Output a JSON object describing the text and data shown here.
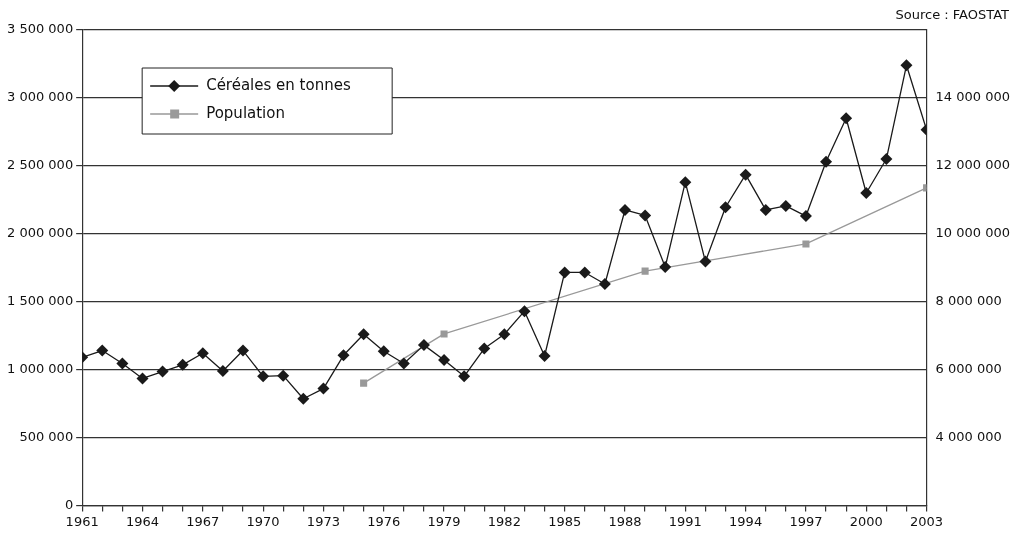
{
  "chart_data": {
    "type": "line",
    "annotations": [
      "Source : FAOSTAT"
    ],
    "xlim": [
      1961,
      2003
    ],
    "xticks": [
      1961,
      1964,
      1967,
      1970,
      1973,
      1976,
      1979,
      1982,
      1985,
      1988,
      1991,
      1994,
      1997,
      2000,
      2003
    ],
    "ylim": [
      0,
      3500000
    ],
    "yticks": [
      {
        "value": 0,
        "label": "0"
      },
      {
        "value": 500000,
        "label": "500 000"
      },
      {
        "value": 1000000,
        "label": "1 000 000"
      },
      {
        "value": 1500000,
        "label": "1 500 000"
      },
      {
        "value": 2000000,
        "label": "2 000 000"
      },
      {
        "value": 2500000,
        "label": "2 500 000"
      },
      {
        "value": 3000000,
        "label": "3 000 000"
      },
      {
        "value": 3500000,
        "label": "3 500 000"
      }
    ],
    "y2lim": [
      2000000,
      16000000
    ],
    "y2ticks": [
      {
        "value": 4000000,
        "label": "4 000 000"
      },
      {
        "value": 6000000,
        "label": "6 000 000"
      },
      {
        "value": 8000000,
        "label": "8 000 000"
      },
      {
        "value": 10000000,
        "label": "10 000 000"
      },
      {
        "value": 12000000,
        "label": "12 000 000"
      },
      {
        "value": 14000000,
        "label": "14 000 000"
      }
    ],
    "grid": "y",
    "legend": "top left",
    "line_style": "solid",
    "series": [
      {
        "name": "Céréales en tonnes",
        "color": "#1a1a1a",
        "marker": "diamond",
        "x": [
          1961,
          1962,
          1963,
          1964,
          1965,
          1966,
          1967,
          1968,
          1969,
          1970,
          1971,
          1972,
          1973,
          1974,
          1975,
          1976,
          1977,
          1978,
          1979,
          1980,
          1981,
          1982,
          1983,
          1984,
          1985,
          1986,
          1987,
          1988,
          1989,
          1990,
          1991,
          1992,
          1993,
          1994,
          1995,
          1996,
          1997,
          1998,
          1999,
          2000,
          2001,
          2002,
          2003
        ],
        "values": [
          1090000,
          1140000,
          1045000,
          935000,
          985000,
          1035000,
          1120000,
          990000,
          1140000,
          950000,
          955000,
          785000,
          860000,
          1105000,
          1260000,
          1135000,
          1045000,
          1180000,
          1070000,
          950000,
          1155000,
          1260000,
          1430000,
          1100000,
          1715000,
          1715000,
          1630000,
          2175000,
          2135000,
          1755000,
          2380000,
          1795000,
          2195000,
          2435000,
          2175000,
          2205000,
          2130000,
          2530000,
          2850000,
          2300000,
          2550000,
          3240000,
          2765000
        ]
      },
      {
        "name": "Population",
        "color": "#999999",
        "marker": "square",
        "axis": "y2",
        "x": [
          1975,
          1979,
          1989,
          1997,
          2003
        ],
        "values": [
          5600000,
          7050000,
          8900000,
          9700000,
          11350000
        ]
      }
    ]
  }
}
